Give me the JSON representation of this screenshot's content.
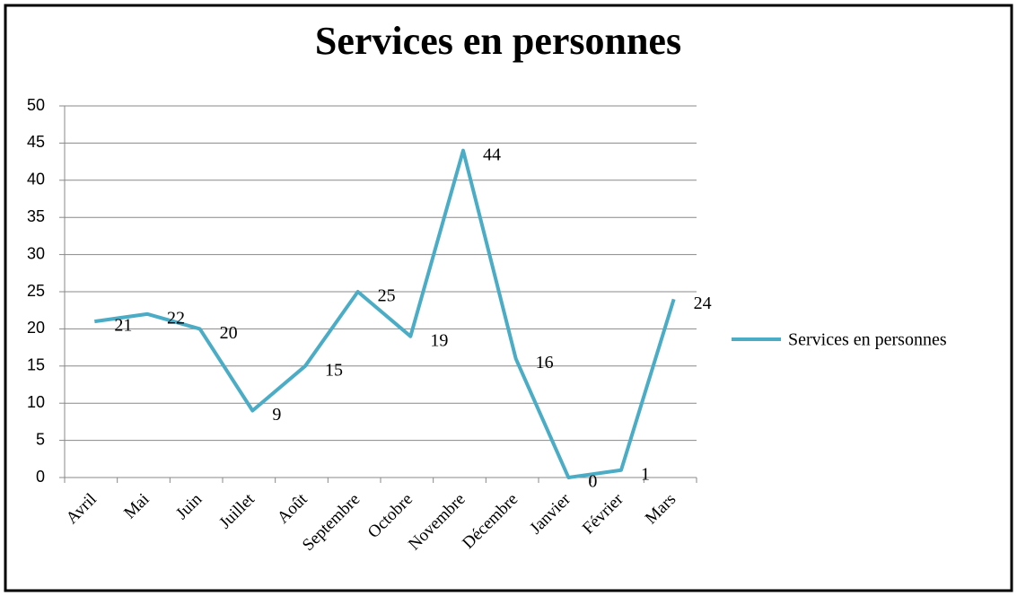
{
  "chart_data": {
    "type": "line",
    "title": "Services en personnes",
    "categories": [
      "Avril",
      "Mai",
      "Juin",
      "Juillet",
      "Août",
      "Septembre",
      "Octobre",
      "Novembre",
      "Décembre",
      "Janvier",
      "Février",
      "Mars"
    ],
    "series": [
      {
        "name": "Services en personnes",
        "color": "#4bacc6",
        "values": [
          21,
          22,
          20,
          9,
          15,
          25,
          19,
          44,
          16,
          0,
          1,
          24
        ]
      }
    ],
    "ylim": [
      0,
      50
    ],
    "yticks": [
      0,
      5,
      10,
      15,
      20,
      25,
      30,
      35,
      40,
      45,
      50
    ],
    "grid": true,
    "legend": "right"
  }
}
